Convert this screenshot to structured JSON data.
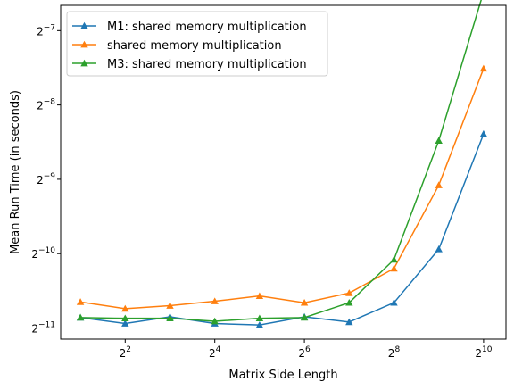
{
  "chart_data": {
    "type": "line",
    "xlabel": "Matrix Side Length",
    "ylabel": "Mean Run Time (in seconds)",
    "xscale": "log2",
    "yscale": "log2",
    "xlim_exp": [
      0.56,
      10.5
    ],
    "ylim_exp": [
      -11.15,
      -6.66
    ],
    "x_exponents": [
      1,
      2,
      3,
      4,
      5,
      6,
      7,
      8,
      9,
      10
    ],
    "x_ticks": [
      {
        "exp": 2,
        "base": "2",
        "sup": "2"
      },
      {
        "exp": 4,
        "base": "2",
        "sup": "4"
      },
      {
        "exp": 6,
        "base": "2",
        "sup": "6"
      },
      {
        "exp": 8,
        "base": "2",
        "sup": "8"
      },
      {
        "exp": 10,
        "base": "2",
        "sup": "10"
      }
    ],
    "y_ticks": [
      {
        "exp": -11,
        "base": "2",
        "sup": "−11"
      },
      {
        "exp": -10,
        "base": "2",
        "sup": "−10"
      },
      {
        "exp": -9,
        "base": "2",
        "sup": "−9"
      },
      {
        "exp": -8,
        "base": "2",
        "sup": "−8"
      },
      {
        "exp": -7,
        "base": "2",
        "sup": "−7"
      }
    ],
    "series": [
      {
        "name": "M1: shared memory multiplication",
        "color": "#1f77b4",
        "y_exp": [
          -10.86,
          -10.94,
          -10.85,
          -10.94,
          -10.96,
          -10.85,
          -10.92,
          -10.66,
          -9.94,
          -8.39
        ]
      },
      {
        "name": "shared memory multiplication",
        "color": "#ff7f0e",
        "y_exp": [
          -10.65,
          -10.74,
          -10.7,
          -10.64,
          -10.57,
          -10.66,
          -10.53,
          -10.2,
          -9.08,
          -7.51
        ]
      },
      {
        "name": "M3: shared memory multiplication",
        "color": "#2ca02c",
        "y_exp": [
          -10.86,
          -10.87,
          -10.87,
          -10.91,
          -10.87,
          -10.86,
          -10.66,
          -10.08,
          -8.48,
          -6.48
        ]
      }
    ],
    "legend_position": "upper-left",
    "grid": false
  }
}
